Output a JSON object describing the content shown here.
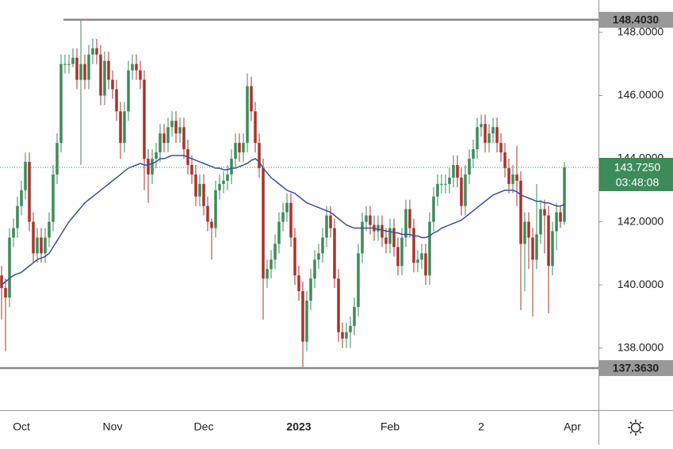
{
  "chart_data": {
    "type": "candlestick",
    "categories": [
      null,
      null,
      null,
      null,
      null,
      "Oct",
      null,
      null,
      null,
      null,
      null,
      null,
      null,
      null,
      null,
      null,
      null,
      null,
      null,
      null,
      null,
      null,
      null,
      null,
      null,
      null,
      null,
      null,
      "Nov",
      null,
      null,
      null,
      null,
      null,
      null,
      null,
      null,
      null,
      null,
      null,
      null,
      null,
      null,
      null,
      null,
      null,
      null,
      null,
      null,
      null,
      null,
      "Dec",
      null,
      null,
      null,
      null,
      null,
      null,
      null,
      null,
      null,
      null,
      null,
      null,
      null,
      null,
      null,
      null,
      null,
      null,
      null,
      null,
      null,
      null,
      null,
      "2023",
      null,
      null,
      null,
      null,
      null,
      null,
      null,
      null,
      null,
      null,
      null,
      null,
      null,
      null,
      null,
      null,
      null,
      null,
      null,
      null,
      null,
      null,
      "Feb",
      null,
      null,
      null,
      null,
      null,
      null,
      null,
      null,
      null,
      null,
      null,
      null,
      null,
      null,
      null,
      null,
      null,
      null,
      null,
      null,
      null,
      null,
      "2",
      null,
      null,
      null,
      null,
      null,
      null,
      null,
      null,
      null,
      null,
      null,
      null,
      null,
      null,
      null,
      null,
      null,
      null,
      null,
      null,
      null,
      null,
      "Apr"
    ],
    "open": [
      140.3,
      139.9,
      139.6,
      141.5,
      141.8,
      142.5,
      143.0,
      143.9,
      142.0,
      141.0,
      141.5,
      141.0,
      141.5,
      142.0,
      143.5,
      144.5,
      147.0,
      147.0,
      147.0,
      147.2,
      146.5,
      147.0,
      146.5,
      147.3,
      147.5,
      147.3,
      146.0,
      147.1,
      146.5,
      146.2,
      145.5,
      144.5,
      145.5,
      146.8,
      147.0,
      146.8,
      146.5,
      144.0,
      143.5,
      144.0,
      144.2,
      144.8,
      144.5,
      145.0,
      145.2,
      144.8,
      145.0,
      144.3,
      143.8,
      143.5,
      142.8,
      143.2,
      142.5,
      142.0,
      141.8,
      143.0,
      143.2,
      143.3,
      143.5,
      144.0,
      144.5,
      144.2,
      144.5,
      146.3,
      145.5,
      144.5,
      143.7,
      140.2,
      140.5,
      140.8,
      141.3,
      142.0,
      142.3,
      142.6,
      141.5,
      140.3,
      139.8,
      138.2,
      139.5,
      140.2,
      140.8,
      141.0,
      141.5,
      142.2,
      141.8,
      140.2,
      138.5,
      138.3,
      138.5,
      138.7,
      139.3,
      141.0,
      142.0,
      142.2,
      141.9,
      141.7,
      141.9,
      141.5,
      141.3,
      141.8,
      141.2,
      140.6,
      141.5,
      142.4,
      141.8,
      140.7,
      140.8,
      141.0,
      140.3,
      142.0,
      142.8,
      143.2,
      143.2,
      143.2,
      143.4,
      143.8,
      143.4,
      142.5,
      143.5,
      144.0,
      144.3,
      145.0,
      145.1,
      144.5,
      144.8,
      145.0,
      144.5,
      144.2,
      143.7,
      143.2,
      143.5,
      143.3,
      141.3,
      142.0,
      141.5,
      140.8,
      141.6,
      142.4,
      142.2,
      140.6,
      141.7,
      142.3,
      142.0,
      null,
      null
    ],
    "high": [
      140.6,
      140.2,
      141.8,
      142.1,
      142.8,
      143.3,
      144.2,
      144.2,
      142.3,
      141.8,
      141.8,
      141.8,
      142.3,
      143.8,
      144.8,
      147.3,
      147.3,
      147.3,
      147.5,
      147.5,
      148.4,
      147.3,
      147.6,
      147.8,
      147.8,
      147.6,
      147.4,
      147.4,
      146.8,
      146.5,
      145.8,
      145.8,
      147.1,
      147.3,
      147.3,
      147.1,
      146.8,
      144.3,
      144.3,
      144.5,
      145.1,
      145.1,
      145.3,
      145.5,
      145.5,
      145.3,
      145.3,
      144.6,
      144.1,
      143.8,
      143.5,
      143.5,
      142.8,
      142.1,
      143.3,
      143.5,
      143.6,
      143.8,
      144.3,
      144.8,
      144.8,
      144.8,
      146.7,
      146.6,
      145.8,
      144.8,
      144.0,
      140.8,
      141.1,
      141.6,
      142.3,
      142.6,
      142.9,
      142.9,
      141.8,
      140.6,
      140.1,
      139.8,
      140.5,
      141.1,
      141.3,
      141.8,
      142.5,
      142.5,
      142.1,
      140.5,
      138.8,
      138.8,
      139.0,
      139.6,
      141.3,
      142.3,
      142.5,
      142.5,
      142.2,
      142.2,
      142.2,
      141.8,
      142.1,
      142.1,
      141.5,
      141.8,
      142.7,
      142.7,
      142.1,
      141.1,
      141.3,
      141.3,
      142.3,
      143.1,
      143.5,
      143.5,
      143.5,
      143.7,
      144.1,
      144.1,
      143.7,
      143.8,
      144.3,
      144.6,
      145.3,
      145.4,
      145.4,
      145.1,
      145.3,
      145.3,
      144.8,
      144.5,
      144.0,
      143.8,
      144.4,
      143.6,
      142.3,
      142.3,
      141.8,
      143.2,
      142.7,
      142.7,
      142.5,
      142.0,
      142.6,
      142.5,
      143.9,
      null,
      null
    ],
    "low": [
      138.9,
      137.9,
      139.3,
      141.2,
      141.5,
      142.2,
      142.7,
      141.7,
      140.7,
      140.7,
      140.7,
      140.7,
      141.2,
      141.7,
      143.2,
      144.2,
      146.7,
      146.7,
      146.9,
      146.2,
      143.8,
      146.2,
      146.2,
      147.0,
      147.0,
      145.7,
      145.7,
      146.2,
      145.9,
      145.2,
      144.0,
      144.2,
      145.2,
      146.5,
      146.5,
      146.2,
      143.0,
      142.6,
      143.2,
      143.7,
      143.9,
      144.2,
      144.2,
      144.7,
      144.5,
      144.5,
      144.0,
      143.5,
      143.2,
      142.5,
      142.5,
      142.2,
      141.7,
      140.8,
      141.5,
      142.7,
      142.9,
      143.0,
      143.2,
      143.7,
      143.9,
      143.9,
      144.2,
      145.2,
      144.2,
      143.4,
      138.9,
      139.9,
      140.2,
      140.5,
      141.0,
      141.7,
      142.0,
      141.2,
      140.0,
      139.5,
      137.4,
      137.9,
      139.2,
      139.9,
      140.5,
      140.7,
      141.2,
      141.5,
      139.9,
      138.2,
      138.0,
      138.0,
      138.0,
      138.4,
      139.0,
      140.7,
      141.7,
      141.6,
      141.4,
      141.4,
      141.2,
      141.0,
      141.0,
      140.9,
      140.3,
      140.3,
      141.2,
      141.5,
      140.4,
      140.4,
      140.5,
      140.0,
      140.0,
      141.7,
      142.5,
      142.9,
      142.9,
      142.9,
      143.1,
      143.1,
      142.2,
      142.2,
      143.2,
      143.7,
      144.0,
      144.7,
      144.2,
      144.2,
      144.5,
      144.2,
      143.9,
      143.4,
      142.9,
      142.9,
      142.5,
      139.2,
      139.8,
      140.5,
      139.0,
      140.5,
      141.3,
      141.0,
      139.1,
      140.3,
      141.1,
      141.8,
      141.9,
      null,
      null
    ],
    "close": [
      139.9,
      139.6,
      141.5,
      141.8,
      142.5,
      143.0,
      143.9,
      142.0,
      141.0,
      141.5,
      141.0,
      141.5,
      142.0,
      143.5,
      144.5,
      147.0,
      147.0,
      147.0,
      147.2,
      146.5,
      147.0,
      146.5,
      147.3,
      147.5,
      147.3,
      146.0,
      147.1,
      146.5,
      146.2,
      145.5,
      144.5,
      145.5,
      146.8,
      147.0,
      146.8,
      146.5,
      144.0,
      143.5,
      144.0,
      144.2,
      144.8,
      144.5,
      145.0,
      145.2,
      144.8,
      145.0,
      144.3,
      143.8,
      143.5,
      142.8,
      143.2,
      142.5,
      142.0,
      141.8,
      143.0,
      143.2,
      143.3,
      143.5,
      144.0,
      144.5,
      144.2,
      144.5,
      146.3,
      145.5,
      144.5,
      143.7,
      140.2,
      140.5,
      140.8,
      141.3,
      142.0,
      142.3,
      142.6,
      141.5,
      140.3,
      139.8,
      138.2,
      139.5,
      140.2,
      140.8,
      141.0,
      141.5,
      142.2,
      141.8,
      140.2,
      138.5,
      138.3,
      138.5,
      138.7,
      139.3,
      141.0,
      142.0,
      142.2,
      141.9,
      141.7,
      141.9,
      141.5,
      141.3,
      141.8,
      141.2,
      140.6,
      141.5,
      142.4,
      141.8,
      140.7,
      140.8,
      141.0,
      140.3,
      142.0,
      142.8,
      143.2,
      143.2,
      143.2,
      143.4,
      143.8,
      143.4,
      142.5,
      143.5,
      144.0,
      144.3,
      145.0,
      145.1,
      144.5,
      144.8,
      145.0,
      144.5,
      144.2,
      143.7,
      143.2,
      143.5,
      143.3,
      141.3,
      142.0,
      141.5,
      140.8,
      141.6,
      142.4,
      142.2,
      140.6,
      141.7,
      142.3,
      142.0,
      143.725,
      null,
      null
    ],
    "ma": {
      "color": "#3a4fa0",
      "values": [
        140.0,
        140.1,
        140.2,
        140.3,
        140.35,
        140.4,
        140.5,
        140.6,
        140.7,
        140.8,
        140.85,
        140.9,
        141.0,
        141.2,
        141.4,
        141.6,
        141.8,
        142.0,
        142.15,
        142.3,
        142.45,
        142.6,
        142.7,
        142.8,
        142.9,
        143.0,
        143.1,
        143.2,
        143.3,
        143.4,
        143.5,
        143.6,
        143.7,
        143.75,
        143.8,
        143.85,
        143.8,
        143.8,
        143.85,
        143.9,
        144.0,
        144.0,
        144.05,
        144.1,
        144.1,
        144.1,
        144.1,
        144.05,
        144.0,
        143.95,
        143.9,
        143.85,
        143.8,
        143.75,
        143.7,
        143.7,
        143.65,
        143.65,
        143.7,
        143.7,
        143.75,
        143.8,
        143.85,
        143.95,
        144.0,
        143.9,
        143.7,
        143.55,
        143.4,
        143.3,
        143.2,
        143.1,
        143.0,
        142.95,
        142.9,
        142.8,
        142.7,
        142.6,
        142.55,
        142.5,
        142.45,
        142.4,
        142.35,
        142.3,
        142.2,
        142.1,
        142.0,
        141.9,
        141.85,
        141.8,
        141.8,
        141.8,
        141.8,
        141.8,
        141.8,
        141.75,
        141.75,
        141.7,
        141.7,
        141.65,
        141.65,
        141.6,
        141.6,
        141.6,
        141.55,
        141.55,
        141.5,
        141.5,
        141.55,
        141.65,
        141.7,
        141.8,
        141.85,
        141.9,
        141.95,
        142.0,
        142.05,
        142.15,
        142.25,
        142.35,
        142.45,
        142.55,
        142.65,
        142.75,
        142.85,
        142.9,
        142.95,
        143.0,
        143.0,
        143.0,
        142.95,
        142.85,
        142.8,
        142.75,
        142.7,
        142.65,
        142.65,
        142.6,
        142.6,
        142.55,
        142.5,
        142.5,
        142.55,
        null,
        null
      ]
    },
    "up_color": "#3d8b5a",
    "down_color": "#a8342c",
    "ylim": [
      136.03,
      149.03
    ],
    "yticks": [
      {
        "value": 138,
        "label": "138.0000"
      },
      {
        "value": 140,
        "label": "140.0000"
      },
      {
        "value": 142,
        "label": "142.0000"
      },
      {
        "value": 144,
        "label": "144.0000"
      },
      {
        "value": 146,
        "label": "146.0000"
      },
      {
        "value": 148,
        "label": "148.0000"
      }
    ],
    "hlines": [
      {
        "value": 148.403,
        "label": "148.4030"
      },
      {
        "value": 137.363,
        "label": "137.3630"
      }
    ],
    "last_price": {
      "value": 143.725,
      "label": "143.7250",
      "countdown": "03:48:08"
    }
  }
}
